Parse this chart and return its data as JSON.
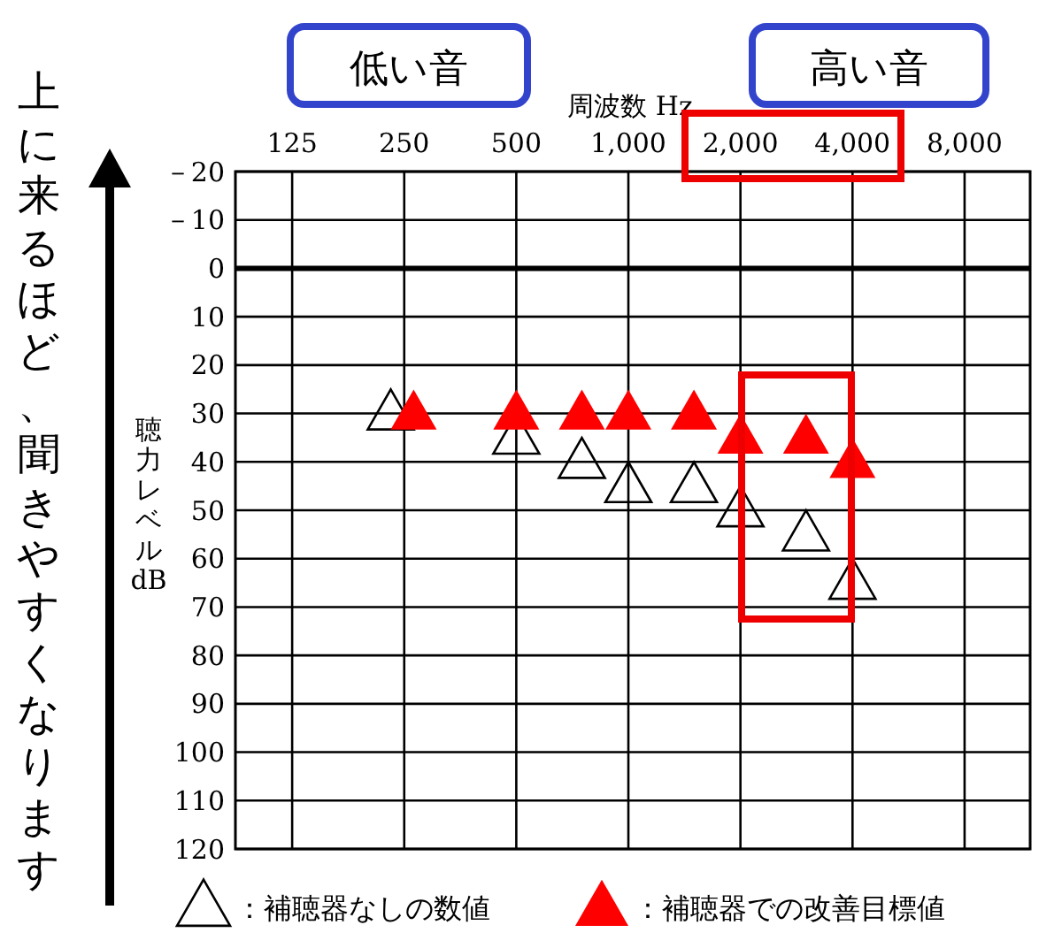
{
  "chart_data": {
    "type": "scatter",
    "xlabel": "周波数 Hz",
    "ylabel": "聴力レベル dB",
    "log": "x",
    "xlim": [
      88,
      12000
    ],
    "ylim": [
      120,
      -20
    ],
    "xticks": [
      125,
      250,
      500,
      {
        "value": 1000,
        "label": "1,000"
      },
      {
        "value": 2000,
        "label": "2,000"
      },
      {
        "value": 4000,
        "label": "4,000"
      },
      {
        "value": 8000,
        "label": "8,000"
      }
    ],
    "yticks": [
      {
        "value": -20,
        "label": "－20"
      },
      {
        "value": -10,
        "label": "－10"
      },
      0,
      10,
      20,
      30,
      40,
      50,
      60,
      70,
      80,
      90,
      100,
      110,
      120
    ],
    "grid": true,
    "marker": "triangle",
    "legend": "bottom",
    "ref_lines": [
      {
        "axis": "y",
        "value": 0,
        "color": "#000000"
      }
    ],
    "series": [
      {
        "name": "：補聴器なしの数値",
        "color": "#000000",
        "x": [
          230,
          500,
          750,
          1000,
          1500,
          2000,
          3000,
          4000
        ],
        "values": [
          30,
          35,
          40,
          45,
          45,
          50,
          55,
          65
        ]
      },
      {
        "name": "：補聴器での改善目標値",
        "color": "#ff0000",
        "x": [
          265,
          500,
          750,
          1000,
          1500,
          2000,
          3000,
          4000
        ],
        "values": [
          30,
          30,
          30,
          30,
          30,
          35,
          35,
          40
        ]
      }
    ],
    "annotations": [
      "低い音",
      "高い音",
      "上に来るほど、聞きやすくなります"
    ]
  }
}
